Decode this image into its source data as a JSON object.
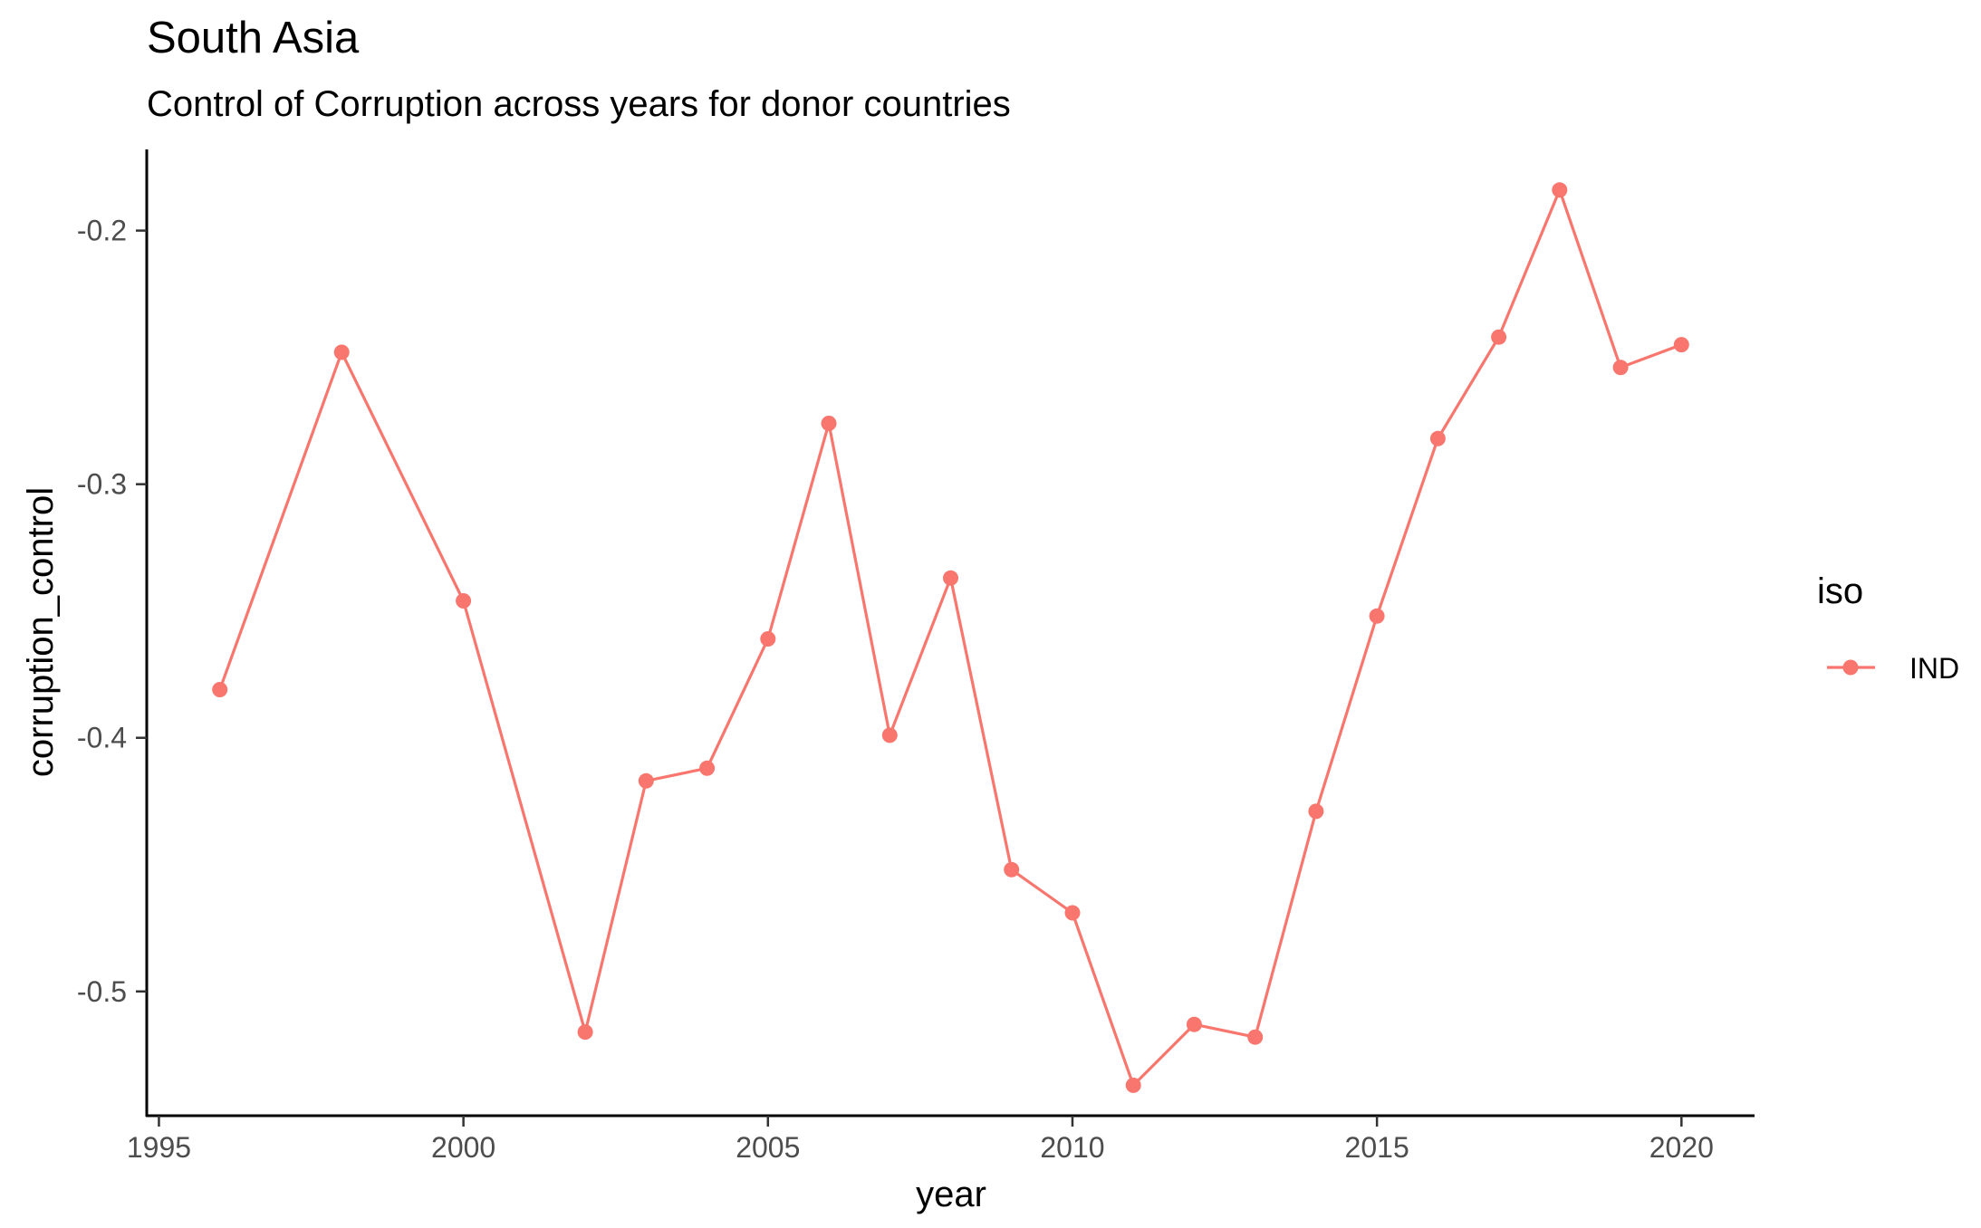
{
  "chart_data": {
    "type": "line",
    "title": "South Asia",
    "subtitle": "Control of Corruption across years for donor countries",
    "xlabel": "year",
    "ylabel": "corruption_control",
    "xlim": [
      1994.8,
      2021.2
    ],
    "ylim": [
      -0.549,
      -0.168
    ],
    "x_ticks": [
      1995,
      2000,
      2005,
      2010,
      2015,
      2020
    ],
    "x_tick_labels": [
      "1995",
      "2000",
      "2005",
      "2010",
      "2015",
      "2020"
    ],
    "y_ticks": [
      -0.2,
      -0.3,
      -0.4,
      -0.5
    ],
    "y_tick_labels": [
      "-0.2",
      "-0.3",
      "-0.4",
      "-0.5"
    ],
    "grid": false,
    "legend": {
      "title": "iso",
      "position": "right",
      "entries": [
        "IND"
      ]
    },
    "series": [
      {
        "name": "IND",
        "color": "#F8766D",
        "x": [
          1996,
          1998,
          2000,
          2002,
          2003,
          2004,
          2005,
          2006,
          2007,
          2008,
          2009,
          2010,
          2011,
          2012,
          2013,
          2014,
          2015,
          2016,
          2017,
          2018,
          2019,
          2020
        ],
        "y": [
          -0.381,
          -0.248,
          -0.346,
          -0.516,
          -0.417,
          -0.412,
          -0.361,
          -0.276,
          -0.399,
          -0.337,
          -0.452,
          -0.469,
          -0.537,
          -0.513,
          -0.518,
          -0.429,
          -0.352,
          -0.282,
          -0.242,
          -0.184,
          -0.254,
          -0.245
        ]
      }
    ]
  }
}
